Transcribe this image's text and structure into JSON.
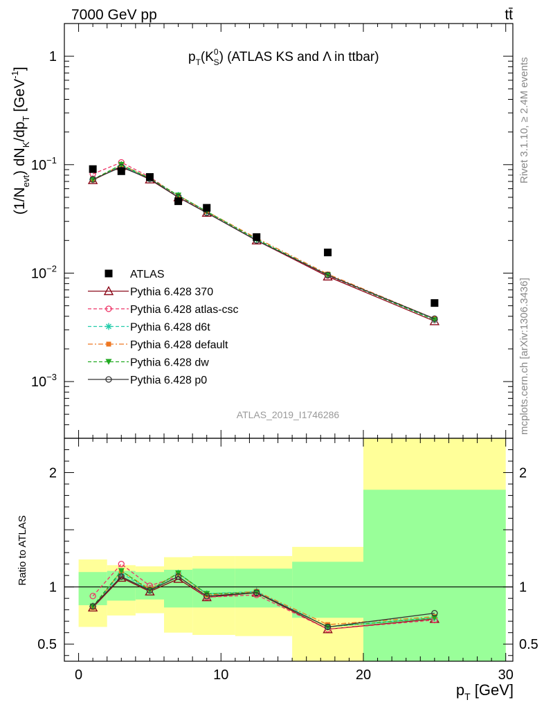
{
  "header": {
    "left": "7000 GeV pp",
    "right": "tt̄"
  },
  "side_labels": {
    "rivet": "Rivet 3.1.10, ≥ 2.4M events",
    "mcplots": "mcplots.cern.ch [arXiv:1306.3436]"
  },
  "watermark": "ATLAS_2019_I1746286",
  "chart_data": [
    {
      "panel": "main",
      "type": "scatter",
      "title_parts": {
        "p": "p",
        "sub_t": "T",
        "k": "(K",
        "sup_0": "0",
        "sub_s": "S",
        "close": ")",
        "rest": " (ATLAS KS and Λ in ttbar)"
      },
      "ylabel_parts": {
        "a": "(1/N",
        "sub_evt": "evt",
        "b": ") dN",
        "sub_k": "K",
        "c": "/dp",
        "sub_t": "T",
        "d": " [GeV",
        "sup": "-1",
        "e": "]"
      },
      "yscale": "log",
      "ylim": [
        0.0003,
        2.0
      ],
      "xlim": [
        -1,
        30.5
      ],
      "y_ticks": [
        {
          "v": 1,
          "base": "1",
          "exp": ""
        },
        {
          "v": 0.1,
          "base": "10",
          "exp": "−1"
        },
        {
          "v": 0.01,
          "base": "10",
          "exp": "−2"
        },
        {
          "v": 0.001,
          "base": "10",
          "exp": "−3"
        }
      ],
      "x": [
        1,
        3,
        5,
        7,
        9,
        12.5,
        17.5,
        25
      ],
      "data": {
        "name": "ATLAS",
        "values": [
          0.091,
          0.087,
          0.077,
          0.046,
          0.04,
          0.0215,
          0.0155,
          0.0053
        ],
        "color": "#000000"
      },
      "series": [
        {
          "name": "Pythia 6.428 370",
          "color": "#8b0a1a",
          "marker": "triangle-open",
          "dash": "",
          "values": [
            0.072,
            0.097,
            0.073,
            0.05,
            0.036,
            0.02,
            0.0093,
            0.0036
          ]
        },
        {
          "name": "Pythia 6.428 atlas-csc",
          "color": "#ee3366",
          "marker": "circle-open",
          "dash": "5,3",
          "values": [
            0.082,
            0.105,
            0.077,
            0.051,
            0.036,
            0.02,
            0.0095,
            0.0037
          ]
        },
        {
          "name": "Pythia 6.428 d6t",
          "color": "#22ccaa",
          "marker": "star",
          "dash": "5,3",
          "values": [
            0.073,
            0.098,
            0.074,
            0.052,
            0.037,
            0.0205,
            0.0096,
            0.0037
          ]
        },
        {
          "name": "Pythia 6.428 default",
          "color": "#ee7722",
          "marker": "square",
          "dash": "7,3,2,3",
          "values": [
            0.072,
            0.1,
            0.075,
            0.052,
            0.037,
            0.021,
            0.0098,
            0.0038
          ]
        },
        {
          "name": "Pythia 6.428 dw",
          "color": "#22aa22",
          "marker": "triangle-down",
          "dash": "5,3",
          "values": [
            0.073,
            0.1,
            0.075,
            0.052,
            0.037,
            0.0205,
            0.0096,
            0.0037
          ]
        },
        {
          "name": "Pythia 6.428 p0",
          "color": "#333333",
          "marker": "circle-open",
          "dash": "",
          "values": [
            0.073,
            0.095,
            0.074,
            0.05,
            0.036,
            0.02,
            0.0096,
            0.0038
          ]
        }
      ],
      "legend_position": "bottom-left"
    },
    {
      "panel": "ratio",
      "type": "line",
      "ylabel": "Ratio to ATLAS",
      "xlabel_parts": {
        "p": "p",
        "sub": "T",
        "unit": " [GeV]"
      },
      "ylim": [
        0.35,
        2.3
      ],
      "xlim": [
        -1,
        30.5
      ],
      "x_ticks": [
        0,
        10,
        20,
        30
      ],
      "y_ticks": [
        {
          "v": 0.5,
          "label": "0.5"
        },
        {
          "v": 1,
          "label": "1"
        },
        {
          "v": 2,
          "label": "2"
        }
      ],
      "bands": [
        {
          "x0": 0,
          "x1": 2,
          "inner": [
            0.84,
            1.13
          ],
          "outer": [
            0.65,
            1.24
          ]
        },
        {
          "x0": 2,
          "x1": 4,
          "inner": [
            0.88,
            1.14
          ],
          "outer": [
            0.75,
            1.19
          ]
        },
        {
          "x0": 4,
          "x1": 6,
          "inner": [
            0.89,
            1.13
          ],
          "outer": [
            0.77,
            1.18
          ]
        },
        {
          "x0": 6,
          "x1": 8,
          "inner": [
            0.82,
            1.15
          ],
          "outer": [
            0.6,
            1.26
          ]
        },
        {
          "x0": 8,
          "x1": 11,
          "inner": [
            0.82,
            1.16
          ],
          "outer": [
            0.58,
            1.27
          ]
        },
        {
          "x0": 11,
          "x1": 15,
          "inner": [
            0.82,
            1.16
          ],
          "outer": [
            0.57,
            1.27
          ]
        },
        {
          "x0": 15,
          "x1": 20,
          "inner": [
            0.73,
            1.22
          ],
          "outer": [
            0.35,
            1.35
          ]
        },
        {
          "x0": 20,
          "x1": 30,
          "inner": [
            0.35,
            1.85
          ],
          "outer": [
            0.35,
            2.3
          ]
        }
      ],
      "band_colors": {
        "inner": "#99ff99",
        "outer": "#ffff99"
      },
      "x": [
        1,
        3,
        5,
        7,
        9,
        12.5,
        17.5,
        25
      ],
      "series": [
        {
          "name": "Pythia 6.428 370",
          "values": [
            0.82,
            1.08,
            0.96,
            1.07,
            0.91,
            0.95,
            0.63,
            0.72
          ]
        },
        {
          "name": "Pythia 6.428 atlas-csc",
          "values": [
            0.92,
            1.2,
            1.01,
            1.09,
            0.91,
            0.93,
            0.63,
            0.71
          ]
        },
        {
          "name": "Pythia 6.428 d6t",
          "values": [
            0.83,
            1.12,
            0.97,
            1.12,
            0.94,
            0.96,
            0.65,
            0.73
          ]
        },
        {
          "name": "Pythia 6.428 default",
          "values": [
            0.82,
            1.14,
            0.98,
            1.12,
            0.93,
            0.96,
            0.67,
            0.74
          ]
        },
        {
          "name": "Pythia 6.428 dw",
          "values": [
            0.83,
            1.14,
            0.97,
            1.12,
            0.94,
            0.95,
            0.65,
            0.73
          ]
        },
        {
          "name": "Pythia 6.428 p0",
          "values": [
            0.83,
            1.09,
            0.97,
            1.09,
            0.92,
            0.95,
            0.65,
            0.77
          ]
        }
      ]
    }
  ]
}
